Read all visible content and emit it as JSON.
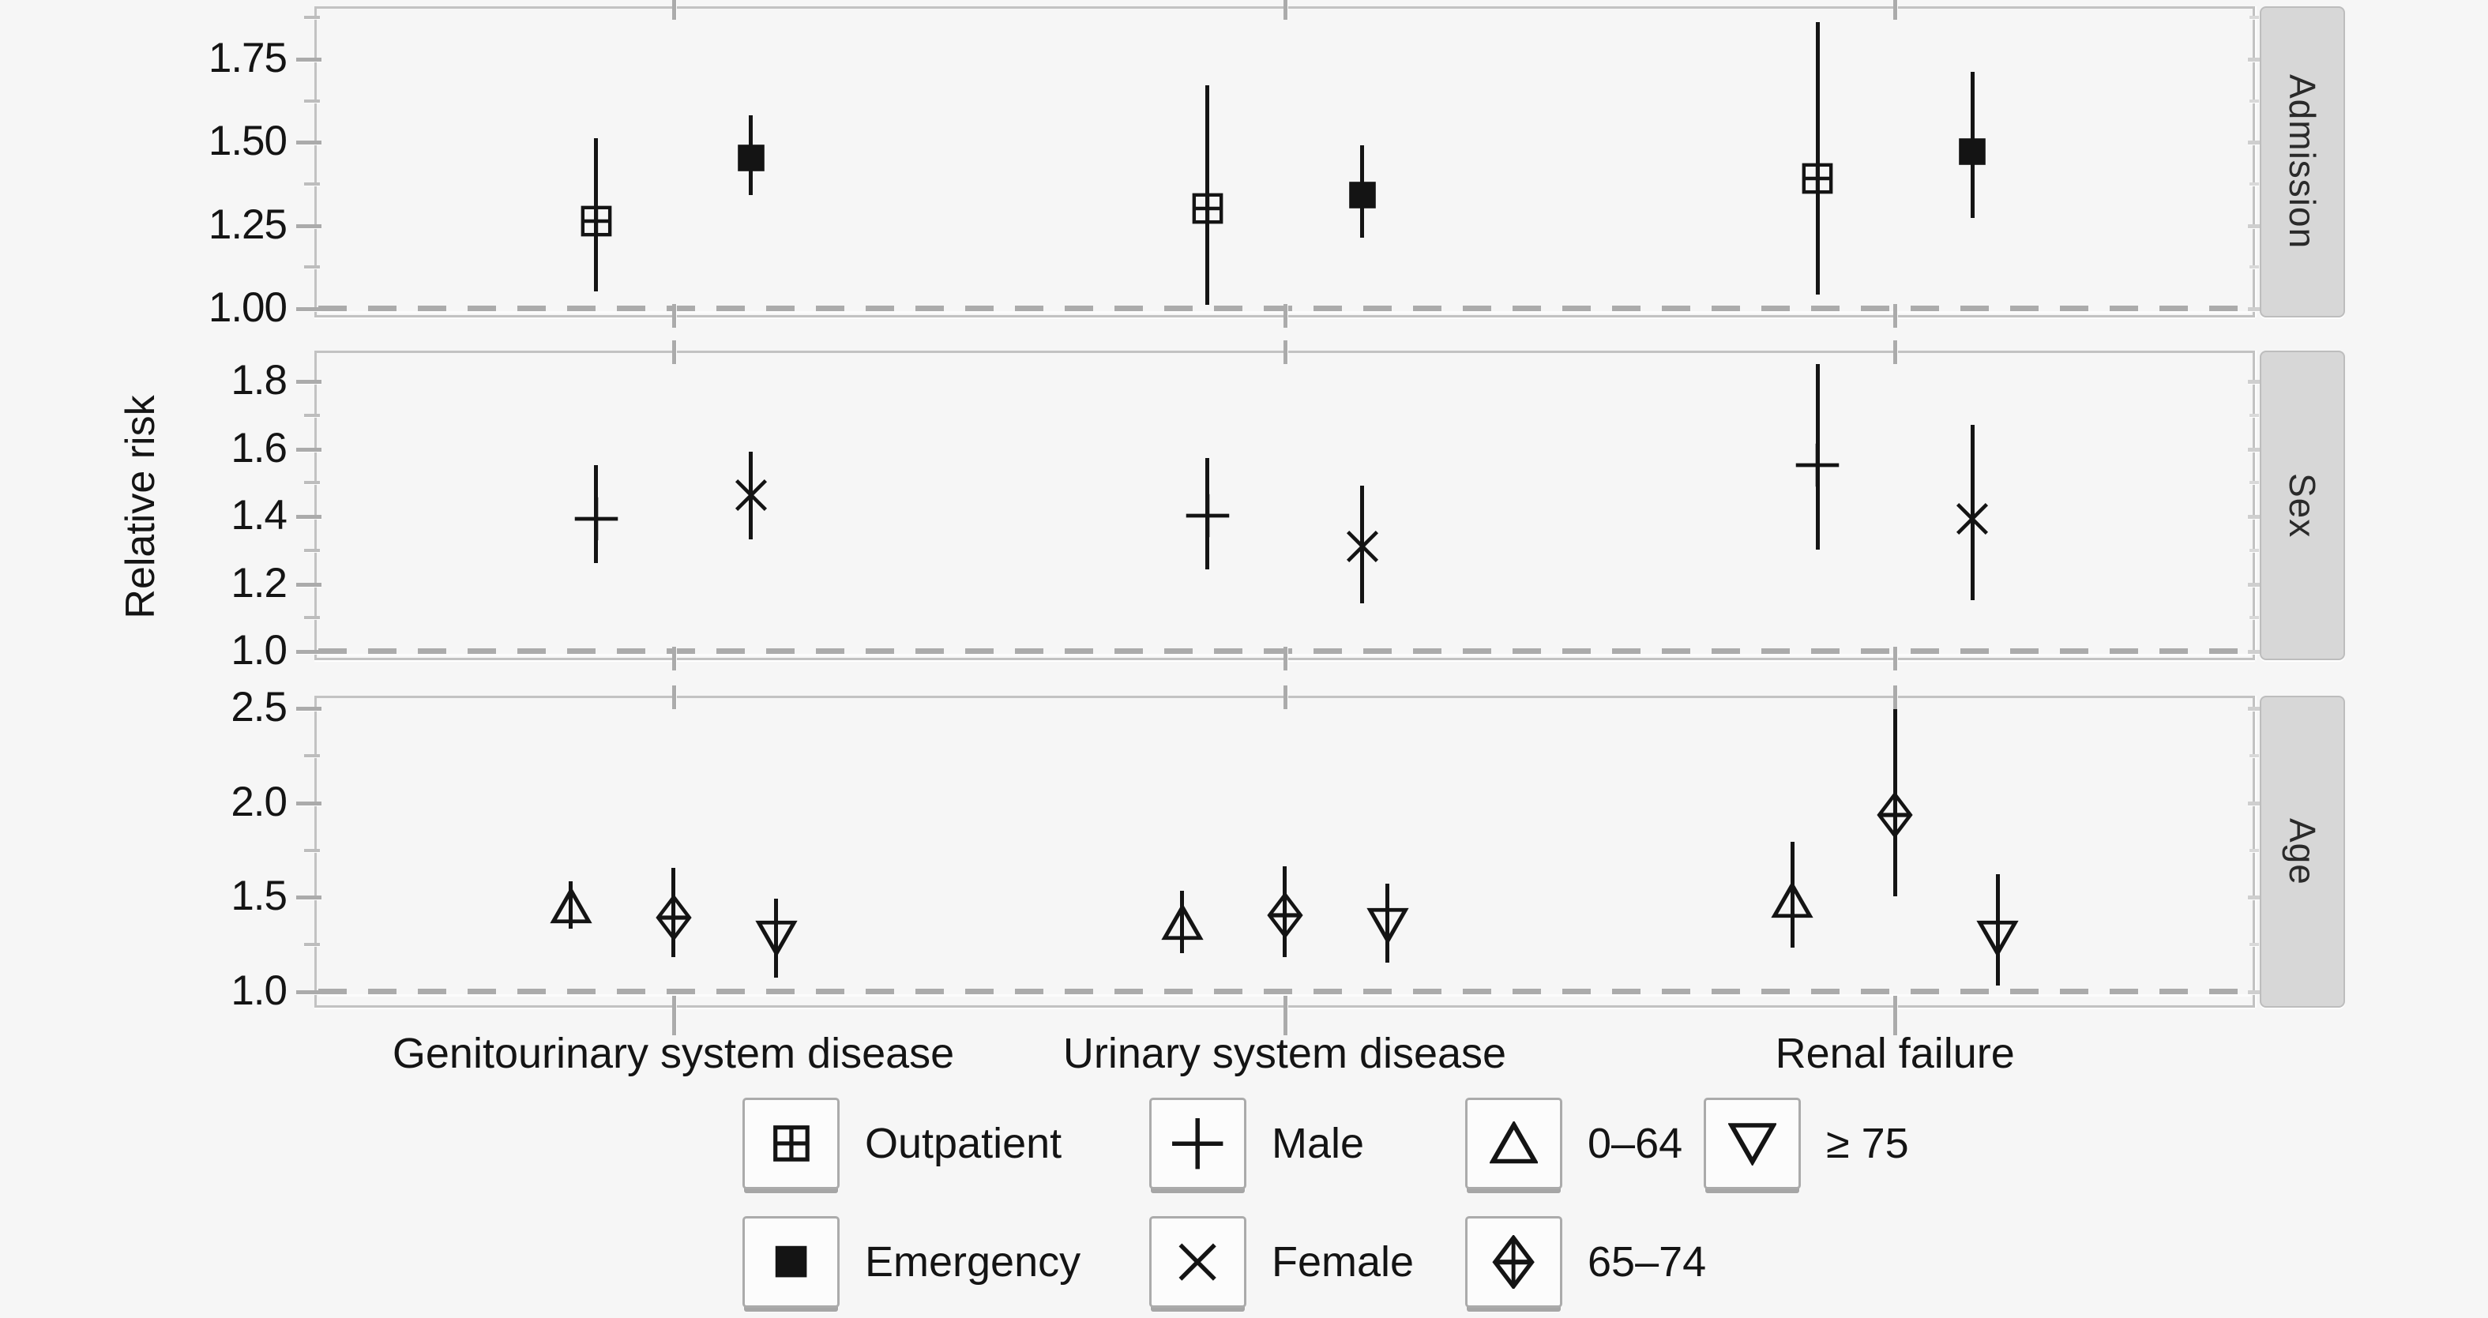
{
  "page": {
    "background": "#f6f6f6",
    "text_color": "#141414"
  },
  "colors": {
    "marker": "#141414",
    "reference_line": "#ababab",
    "panel_border": "#c2c2c2",
    "axis_tick": "#ababab",
    "strip_background": "#d7d7d7",
    "legend_key_background": "#fcfcfc"
  },
  "chart_data": {
    "type": "pointrange-forest",
    "title": "",
    "ylabel": "Relative risk",
    "xlabel": "",
    "grid": "off",
    "legend_position": "bottom",
    "reference_line": 1.0,
    "categories": [
      "Genitourinary system disease",
      "Urinary system disease",
      "Renal failure"
    ],
    "panels": [
      {
        "label": "Admission",
        "ylim": [
          0.971,
          1.907
        ],
        "yticks": [
          1.0,
          1.25,
          1.5,
          1.75
        ],
        "ytick_labels": [
          "1.00",
          "1.25",
          "1.50",
          "1.75"
        ],
        "minor_ticks": [
          1.125,
          1.375,
          1.625,
          1.875
        ],
        "series": [
          {
            "name": "Outpatient",
            "marker": "square-plus",
            "points": [
              {
                "category": "Genitourinary system disease",
                "estimate": 1.26,
                "lower": 1.05,
                "upper": 1.51
              },
              {
                "category": "Urinary system disease",
                "estimate": 1.3,
                "lower": 1.01,
                "upper": 1.67
              },
              {
                "category": "Renal failure",
                "estimate": 1.39,
                "lower": 1.04,
                "upper": 1.86
              }
            ]
          },
          {
            "name": "Emergency",
            "marker": "square-filled",
            "points": [
              {
                "category": "Genitourinary system disease",
                "estimate": 1.45,
                "lower": 1.34,
                "upper": 1.58
              },
              {
                "category": "Urinary system disease",
                "estimate": 1.34,
                "lower": 1.21,
                "upper": 1.49
              },
              {
                "category": "Renal failure",
                "estimate": 1.47,
                "lower": 1.27,
                "upper": 1.71
              }
            ]
          }
        ]
      },
      {
        "label": "Sex",
        "ylim": [
          0.972,
          1.889
        ],
        "yticks": [
          1.0,
          1.2,
          1.4,
          1.6,
          1.8
        ],
        "ytick_labels": [
          "1.0",
          "1.2",
          "1.4",
          "1.6",
          "1.8"
        ],
        "minor_ticks": [
          1.1,
          1.3,
          1.5,
          1.7
        ],
        "series": [
          {
            "name": "Male",
            "marker": "plus",
            "points": [
              {
                "category": "Genitourinary system disease",
                "estimate": 1.39,
                "lower": 1.26,
                "upper": 1.55
              },
              {
                "category": "Urinary system disease",
                "estimate": 1.4,
                "lower": 1.24,
                "upper": 1.57
              },
              {
                "category": "Renal failure",
                "estimate": 1.55,
                "lower": 1.3,
                "upper": 1.85
              }
            ]
          },
          {
            "name": "Female",
            "marker": "cross",
            "points": [
              {
                "category": "Genitourinary system disease",
                "estimate": 1.46,
                "lower": 1.33,
                "upper": 1.59
              },
              {
                "category": "Urinary system disease",
                "estimate": 1.31,
                "lower": 1.14,
                "upper": 1.49
              },
              {
                "category": "Renal failure",
                "estimate": 1.39,
                "lower": 1.15,
                "upper": 1.67
              }
            ]
          }
        ]
      },
      {
        "label": "Age",
        "ylim": [
          0.912,
          2.563
        ],
        "yticks": [
          1.0,
          1.5,
          2.0,
          2.5
        ],
        "ytick_labels": [
          "1.0",
          "1.5",
          "2.0",
          "2.5"
        ],
        "minor_ticks": [
          1.25,
          1.75,
          2.25
        ],
        "series": [
          {
            "name": "0–64",
            "marker": "triangle-up",
            "points": [
              {
                "category": "Genitourinary system disease",
                "estimate": 1.45,
                "lower": 1.33,
                "upper": 1.58
              },
              {
                "category": "Urinary system disease",
                "estimate": 1.36,
                "lower": 1.2,
                "upper": 1.53
              },
              {
                "category": "Renal failure",
                "estimate": 1.48,
                "lower": 1.23,
                "upper": 1.79
              }
            ]
          },
          {
            "name": "65–74",
            "marker": "diamond-plus",
            "points": [
              {
                "category": "Genitourinary system disease",
                "estimate": 1.39,
                "lower": 1.18,
                "upper": 1.65
              },
              {
                "category": "Urinary system disease",
                "estimate": 1.4,
                "lower": 1.18,
                "upper": 1.66
              },
              {
                "category": "Renal failure",
                "estimate": 1.93,
                "lower": 1.5,
                "upper": 2.49
              }
            ]
          },
          {
            "name": "≥ 75",
            "marker": "triangle-down",
            "points": [
              {
                "category": "Genitourinary system disease",
                "estimate": 1.28,
                "lower": 1.07,
                "upper": 1.49
              },
              {
                "category": "Urinary system disease",
                "estimate": 1.35,
                "lower": 1.15,
                "upper": 1.57
              },
              {
                "category": "Renal failure",
                "estimate": 1.28,
                "lower": 1.03,
                "upper": 1.62
              }
            ]
          }
        ]
      }
    ],
    "legend": {
      "rows": [
        [
          {
            "marker": "square-plus",
            "label": "Outpatient"
          },
          {
            "marker": "plus",
            "label": "Male"
          },
          {
            "marker": "triangle-up",
            "label": "0–64"
          },
          {
            "marker": "triangle-down",
            "label": "≥ 75"
          }
        ],
        [
          {
            "marker": "square-filled",
            "label": "Emergency"
          },
          {
            "marker": "cross",
            "label": "Female"
          },
          {
            "marker": "diamond-plus",
            "label": "65–74"
          }
        ]
      ]
    }
  }
}
